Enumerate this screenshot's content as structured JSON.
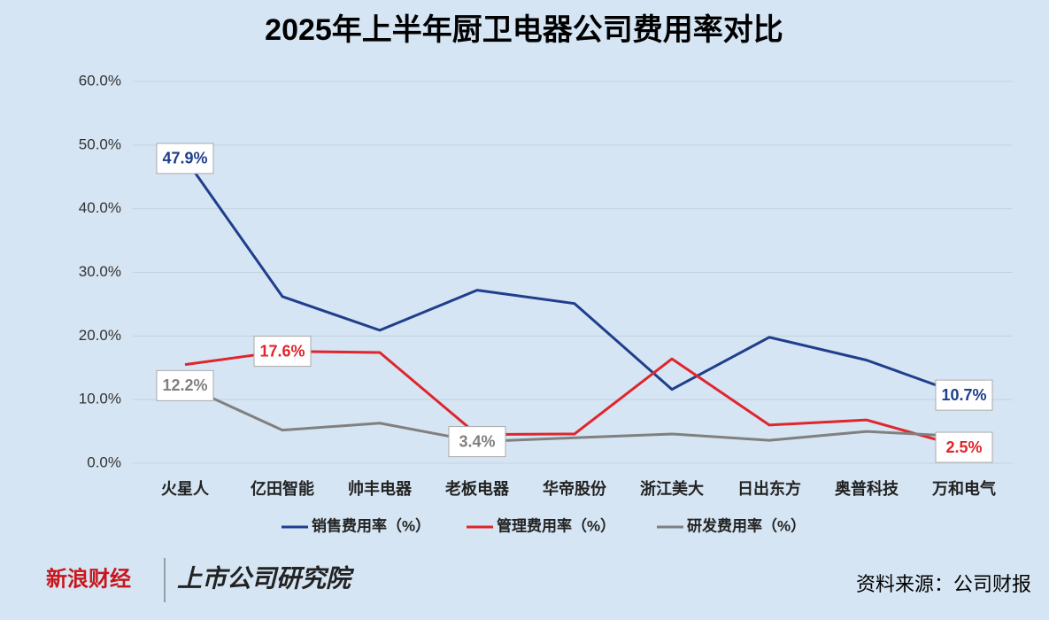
{
  "chart_data": {
    "type": "line",
    "title": "2025年上半年厨卫电器公司费用率对比",
    "categories": [
      "火星人",
      "亿田智能",
      "帅丰电器",
      "老板电器",
      "华帝股份",
      "浙江美大",
      "日出东方",
      "奥普科技",
      "万和电气"
    ],
    "series": [
      {
        "name": "销售费用率（%）",
        "color": "#1f3e8c",
        "values": [
          47.9,
          26.2,
          20.9,
          27.2,
          25.1,
          11.6,
          19.8,
          16.2,
          10.7
        ],
        "value_labels": [
          "47.9%",
          null,
          null,
          null,
          null,
          null,
          null,
          null,
          "10.7%"
        ]
      },
      {
        "name": "管理费用率（%）",
        "color": "#e0252c",
        "values": [
          15.5,
          17.6,
          17.4,
          4.5,
          4.6,
          16.4,
          6.0,
          6.8,
          2.5
        ],
        "value_labels": [
          null,
          "17.6%",
          null,
          null,
          null,
          null,
          null,
          null,
          "2.5%"
        ]
      },
      {
        "name": "研发费用率（%）",
        "color": "#808080",
        "values": [
          12.2,
          5.2,
          6.3,
          3.4,
          4.0,
          4.6,
          3.6,
          5.0,
          4.2
        ],
        "value_labels": [
          "12.2%",
          null,
          null,
          "3.4%",
          null,
          null,
          null,
          null,
          null
        ]
      }
    ],
    "ylim": [
      0,
      60
    ],
    "yticks": [
      {
        "value": 0,
        "label": "0.0%"
      },
      {
        "value": 10,
        "label": "10.0%"
      },
      {
        "value": 20,
        "label": "20.0%"
      },
      {
        "value": 30,
        "label": "30.0%"
      },
      {
        "value": 40,
        "label": "40.0%"
      },
      {
        "value": 50,
        "label": "50.0%"
      },
      {
        "value": 60,
        "label": "60.0%"
      }
    ],
    "grid": true,
    "legend": "bottom",
    "source": "资料来源：公司财报",
    "brand": "新浪财经",
    "institute": "上市公司研究院"
  }
}
